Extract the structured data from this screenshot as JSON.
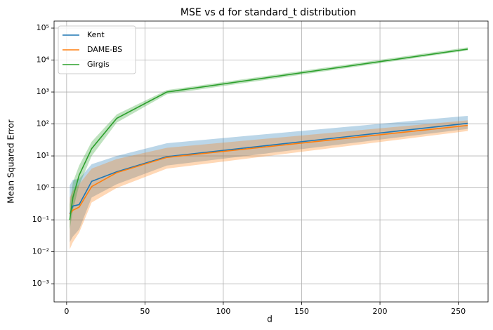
{
  "chart_data": {
    "type": "line",
    "title": "MSE vs d for standard_t distribution",
    "x_label": "d",
    "y_label": "Mean Squared Error",
    "x": [
      2,
      4,
      8,
      16,
      32,
      64,
      256
    ],
    "series": [
      {
        "name": "Kent",
        "color": "#1f77b4",
        "values": [
          0.15,
          0.27,
          0.3,
          1.6,
          3.2,
          9.5,
          105
        ],
        "lower": [
          0.02,
          0.03,
          0.05,
          0.5,
          1.3,
          5,
          70
        ],
        "upper": [
          1.2,
          1.8,
          1.9,
          5.5,
          10,
          25,
          180
        ]
      },
      {
        "name": "DAME-BS",
        "color": "#ff7f0e",
        "values": [
          0.15,
          0.2,
          0.25,
          1.1,
          3,
          9,
          90
        ],
        "lower": [
          0.012,
          0.02,
          0.04,
          0.35,
          1,
          4,
          60
        ],
        "upper": [
          0.5,
          0.8,
          1.3,
          4,
          8,
          18,
          130
        ]
      },
      {
        "name": "Girgis",
        "color": "#2ca02c",
        "values": [
          0.1,
          0.5,
          2.5,
          17,
          150,
          1000,
          22000
        ],
        "lower": [
          0.05,
          0.2,
          1.2,
          10,
          110,
          850,
          20000
        ],
        "upper": [
          0.3,
          1.5,
          5,
          28,
          200,
          1150,
          25000
        ]
      }
    ],
    "xlim": [
      -8,
      269
    ],
    "xticks": [
      0,
      50,
      100,
      150,
      200,
      250
    ],
    "ylim": [
      0.00027,
      166000
    ],
    "log_y": true,
    "yticks": [
      {
        "value": 0.001,
        "label": "10⁻³"
      },
      {
        "value": 0.01,
        "label": "10⁻²"
      },
      {
        "value": 0.1,
        "label": "10⁻¹"
      },
      {
        "value": 1,
        "label": "10⁰"
      },
      {
        "value": 10,
        "label": "10¹"
      },
      {
        "value": 100,
        "label": "10²"
      },
      {
        "value": 1000,
        "label": "10³"
      },
      {
        "value": 10000,
        "label": "10⁴"
      },
      {
        "value": 100000,
        "label": "10⁵"
      }
    ],
    "grid": true,
    "legend": "upper left"
  }
}
